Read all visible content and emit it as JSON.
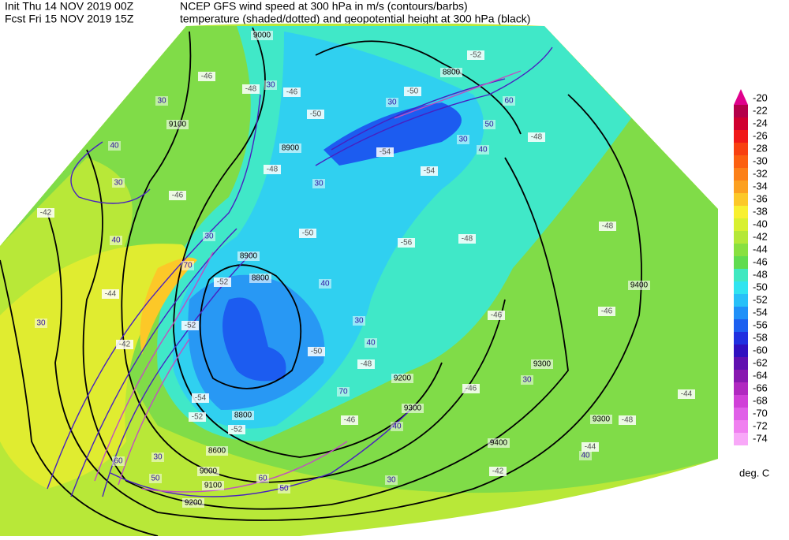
{
  "header": {
    "init": "Init  Thu 14 NOV 2019 00Z",
    "forecast": "Fcst Fri 15 NOV 2019 15Z",
    "title": "NCEP GFS wind speed at 300 hPa in m/s (contours/barbs)",
    "subtitle": "temperature (shaded/dotted) and geopotential height at 300 hPa (black)"
  },
  "map": {
    "height_labels": [
      "9000",
      "8800",
      "9100",
      "8900",
      "8900",
      "8800",
      "9400",
      "9300",
      "9200",
      "8800",
      "8600",
      "9000",
      "9100",
      "9200",
      "9300",
      "9400",
      "9300"
    ],
    "wind_labels": [
      "30",
      "30",
      "40",
      "30",
      "30",
      "60",
      "50",
      "30",
      "40",
      "30",
      "40",
      "30",
      "70",
      "30",
      "40",
      "30",
      "40",
      "30",
      "70",
      "40",
      "30",
      "60",
      "50",
      "60",
      "50",
      "30",
      "40"
    ],
    "temperature_labels": [
      "-46",
      "-48",
      "-46",
      "-50",
      "-52",
      "-50",
      "-54",
      "-54",
      "-48",
      "-48",
      "-46",
      "-42",
      "-50",
      "-56",
      "-48",
      "-48",
      "-44",
      "-52",
      "-52",
      "-50",
      "-46",
      "-46",
      "-42",
      "-48",
      "-54",
      "-52",
      "-52",
      "-46",
      "-46",
      "-48",
      "-44",
      "-44",
      "-42"
    ]
  },
  "colorbar": {
    "levels": [
      -20,
      -22,
      -24,
      -26,
      -28,
      -30,
      -32,
      -34,
      -36,
      -38,
      -40,
      -42,
      -44,
      -46,
      -48,
      -50,
      -52,
      -54,
      -56,
      -58,
      -60,
      -62,
      -64,
      -66,
      -68,
      -70,
      -72,
      -74
    ],
    "colors": [
      "#e0008c",
      "#b4004a",
      "#d00030",
      "#f01818",
      "#f84010",
      "#fc6010",
      "#fc8018",
      "#fca020",
      "#fcc828",
      "#f8f030",
      "#d8f030",
      "#b4e838",
      "#88e040",
      "#60dc50",
      "#40e8c0",
      "#30e4f0",
      "#28c0f8",
      "#2090f8",
      "#1c60f0",
      "#2030e0",
      "#3010c0",
      "#6010b0",
      "#8818b0",
      "#b028c0",
      "#d040d8",
      "#e060e8",
      "#f080f0",
      "#f8a8f8"
    ],
    "unit": "deg. C"
  }
}
